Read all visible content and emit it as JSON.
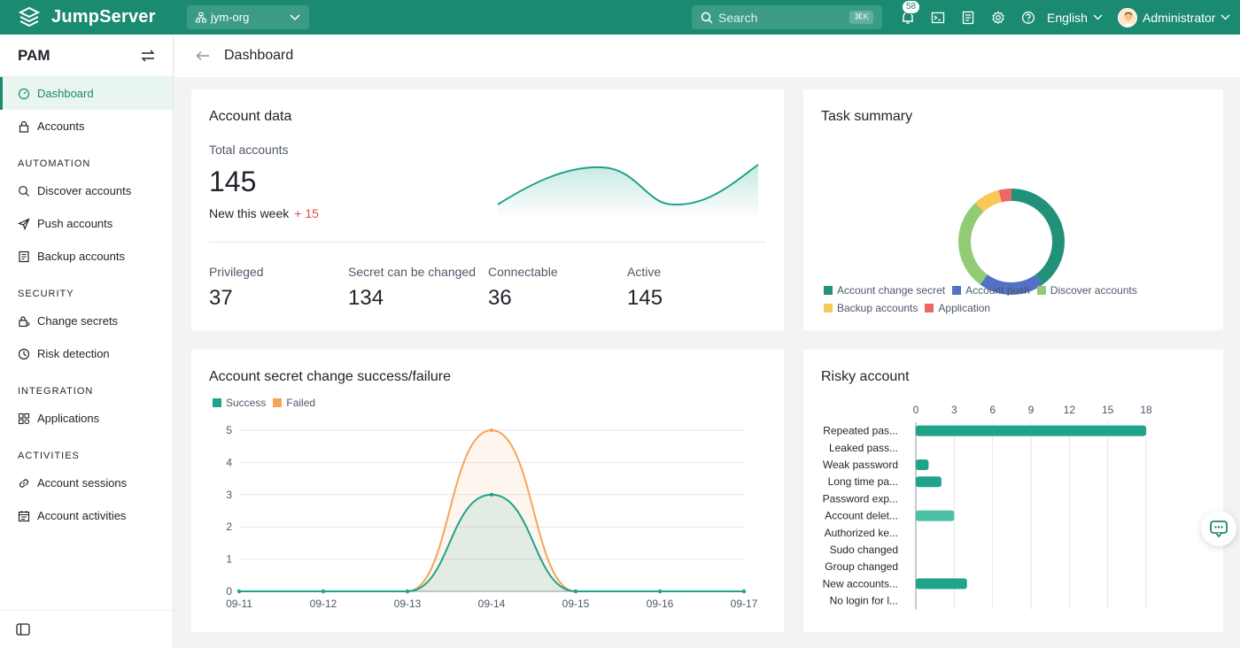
{
  "topbar": {
    "brand": "JumpServer",
    "org": "jym-org",
    "search_placeholder": "Search",
    "search_shortcut": "⌘K",
    "notifications_count": "58",
    "language": "English",
    "user": "Administrator"
  },
  "sidebar": {
    "title": "PAM",
    "items": [
      {
        "label": "Dashboard",
        "icon": "dashboard-icon",
        "active": true
      },
      {
        "label": "Accounts",
        "icon": "lock-icon"
      }
    ],
    "sections": [
      {
        "title": "AUTOMATION",
        "items": [
          {
            "label": "Discover accounts",
            "icon": "search-icon"
          },
          {
            "label": "Push accounts",
            "icon": "send-icon"
          },
          {
            "label": "Backup accounts",
            "icon": "backup-icon"
          }
        ]
      },
      {
        "title": "SECURITY",
        "items": [
          {
            "label": "Change secrets",
            "icon": "key-icon"
          },
          {
            "label": "Risk detection",
            "icon": "risk-icon"
          }
        ]
      },
      {
        "title": "INTEGRATION",
        "items": [
          {
            "label": "Applications",
            "icon": "apps-icon"
          }
        ]
      },
      {
        "title": "ACTIVITIES",
        "items": [
          {
            "label": "Account sessions",
            "icon": "link-icon"
          },
          {
            "label": "Account activities",
            "icon": "calendar-icon"
          }
        ]
      }
    ]
  },
  "page": {
    "title": "Dashboard"
  },
  "account_data": {
    "title": "Account data",
    "total_label": "Total accounts",
    "total": "145",
    "new_label": "New this week",
    "new_value": "+ 15",
    "stats": [
      {
        "label": "Privileged",
        "value": "37"
      },
      {
        "label": "Secret can be changed",
        "value": "134"
      },
      {
        "label": "Connectable",
        "value": "36"
      },
      {
        "label": "Active",
        "value": "145"
      }
    ]
  },
  "task_summary": {
    "title": "Task summary",
    "legend": [
      {
        "name": "Account change secret",
        "color": "#22917a"
      },
      {
        "name": "Account push",
        "color": "#5470c6"
      },
      {
        "name": "Discover accounts",
        "color": "#91cc75"
      },
      {
        "name": "Backup accounts",
        "color": "#fac858"
      },
      {
        "name": "Application",
        "color": "#ee6666"
      }
    ]
  },
  "change_chart": {
    "title": "Account secret change success/failure",
    "legend": [
      {
        "name": "Success",
        "color": "#1fa38a"
      },
      {
        "name": "Failed",
        "color": "#f5a55a"
      }
    ]
  },
  "risky": {
    "title": "Risky account",
    "color": "#1fa38a"
  },
  "chart_data": [
    {
      "type": "pie",
      "title": "Task summary",
      "categories": [
        "Account change secret",
        "Account push",
        "Discover accounts",
        "Backup accounts",
        "Application"
      ],
      "values": [
        40,
        20,
        28,
        8,
        4
      ]
    },
    {
      "type": "line",
      "title": "Account secret change success/failure",
      "x": [
        "09-11",
        "09-12",
        "09-13",
        "09-14",
        "09-15",
        "09-16",
        "09-17"
      ],
      "series": [
        {
          "name": "Success",
          "values": [
            0,
            0,
            0,
            3,
            0,
            0,
            0
          ]
        },
        {
          "name": "Failed",
          "values": [
            0,
            0,
            0,
            5,
            0,
            0,
            0
          ]
        }
      ],
      "ylim": [
        0,
        5
      ],
      "yticks": [
        0,
        1,
        2,
        3,
        4,
        5
      ]
    },
    {
      "type": "bar",
      "title": "Risky account",
      "categories": [
        "Repeated pas...",
        "Leaked pass...",
        "Weak password",
        "Long time pa...",
        "Password exp...",
        "Account delet...",
        "Authorized ke...",
        "Sudo changed",
        "Group changed",
        "New accounts...",
        "No login for l..."
      ],
      "values": [
        18,
        0,
        1,
        2,
        0,
        3,
        0,
        0,
        0,
        4,
        0
      ],
      "xlim": [
        0,
        18
      ],
      "xticks": [
        0,
        3,
        6,
        9,
        12,
        15,
        18
      ]
    }
  ]
}
